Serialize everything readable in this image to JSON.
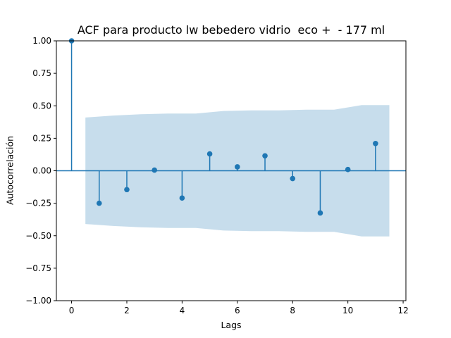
{
  "chart_data": {
    "type": "scatter",
    "title": "ACF para producto lw bebedero vidrio  eco +  - 177 ml",
    "xlabel": "Lags",
    "ylabel": "Autocorrelación",
    "xlim": [
      -0.55,
      12.1
    ],
    "ylim": [
      -1.0,
      1.0
    ],
    "x_ticks": [
      0,
      2,
      4,
      6,
      8,
      10,
      12
    ],
    "y_ticks": [
      1.0,
      0.75,
      0.5,
      0.25,
      0.0,
      -0.25,
      -0.5,
      -0.75,
      -1.0
    ],
    "x_tick_labels": [
      "0",
      "2",
      "4",
      "6",
      "8",
      "10",
      "12"
    ],
    "y_tick_labels": [
      "1.00",
      "0.75",
      "0.50",
      "0.25",
      "0.00",
      "−0.25",
      "−0.50",
      "−0.75",
      "−1.00"
    ],
    "grid": false,
    "series": [
      {
        "lags": [
          0,
          1,
          2,
          3,
          4,
          5,
          6,
          7,
          8,
          9,
          10,
          11
        ],
        "values": [
          1.0,
          -0.25,
          -0.145,
          0.005,
          -0.21,
          0.13,
          0.03,
          0.115,
          -0.06,
          -0.325,
          0.01,
          0.21
        ]
      }
    ],
    "confidence_band": {
      "x": [
        0.5,
        1.5,
        2.5,
        3.5,
        4.5,
        5.5,
        6.5,
        7.5,
        8.5,
        9.5,
        10.5,
        11.5
      ],
      "upper": [
        0.41,
        0.425,
        0.435,
        0.44,
        0.44,
        0.46,
        0.465,
        0.465,
        0.47,
        0.47,
        0.505,
        0.505
      ]
    },
    "colors": {
      "stem": "#1f77b4",
      "band": "#1f77b4",
      "band_opacity": 0.25
    }
  }
}
